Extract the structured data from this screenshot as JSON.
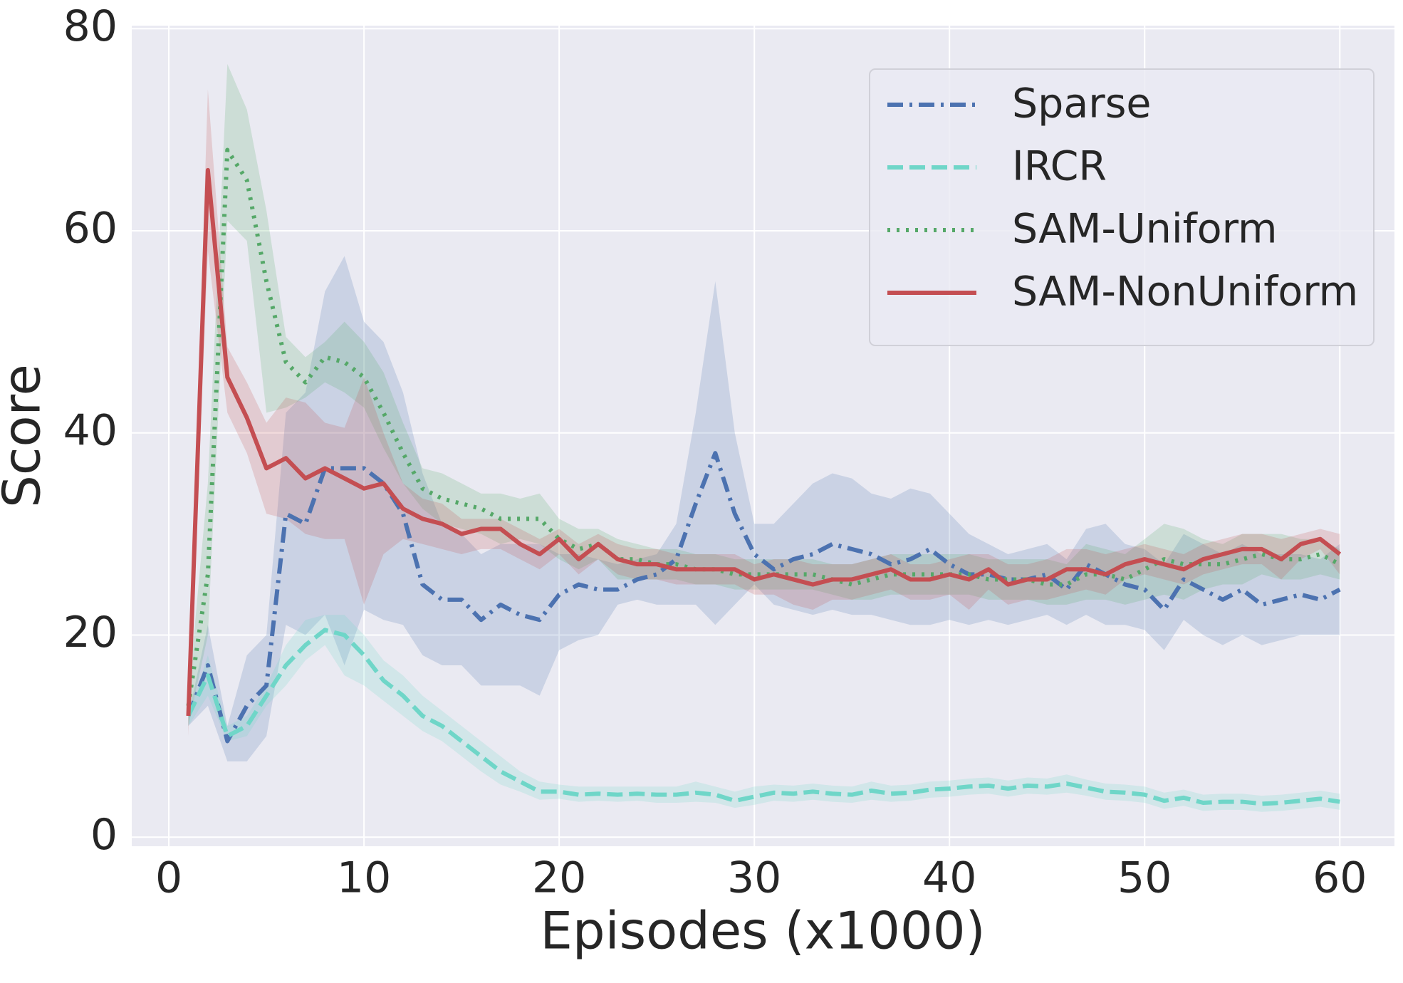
{
  "chart_data": {
    "type": "line",
    "xlabel": "Episodes (x1000)",
    "ylabel": "Score",
    "x": [
      1,
      2,
      3,
      4,
      5,
      6,
      7,
      8,
      9,
      10,
      11,
      12,
      13,
      14,
      15,
      16,
      17,
      18,
      19,
      20,
      21,
      22,
      23,
      24,
      25,
      26,
      27,
      28,
      29,
      30,
      31,
      32,
      33,
      34,
      35,
      36,
      37,
      38,
      39,
      40,
      41,
      42,
      43,
      44,
      45,
      46,
      47,
      48,
      49,
      50,
      51,
      52,
      53,
      54,
      55,
      56,
      57,
      58,
      59,
      60
    ],
    "xlim": [
      -1.9,
      62.8
    ],
    "xticks": [
      0,
      10,
      20,
      30,
      40,
      50,
      60
    ],
    "ylim": [
      -0.9,
      80.3
    ],
    "yticks": [
      0,
      20,
      40,
      60,
      80
    ],
    "grid": true,
    "legend": "upper right",
    "series": [
      {
        "name": "Sparse",
        "color": "#4c72b0",
        "dash": "dashdot",
        "values": [
          12,
          17,
          9.5,
          13,
          15,
          32,
          31,
          36.5,
          36.5,
          36.5,
          35,
          32,
          25,
          23.5,
          23.5,
          21.5,
          23,
          22,
          21.5,
          24,
          25,
          24.5,
          24.5,
          25.5,
          26,
          27.5,
          33,
          38,
          32,
          28,
          26.5,
          27.5,
          28,
          29,
          28.5,
          28,
          27,
          27.5,
          28.5,
          27,
          26,
          26,
          25.5,
          25.5,
          26,
          24.5,
          27,
          26,
          25,
          24.5,
          22.5,
          25.5,
          24.5,
          23.5,
          24.5,
          23,
          23.5,
          24,
          23.5,
          24.5
        ],
        "upper": [
          12,
          21,
          11,
          18,
          20,
          42,
          44,
          54,
          57.5,
          51,
          49,
          44,
          36,
          31,
          30,
          28,
          29,
          29,
          29,
          28,
          28,
          27.5,
          27,
          27.5,
          28,
          31,
          42,
          55,
          40,
          31,
          31,
          33,
          35,
          36,
          35.5,
          34,
          33.5,
          34.5,
          34,
          32,
          30,
          29,
          28,
          28.5,
          29,
          27.5,
          30.5,
          31,
          29,
          28.5,
          27,
          30,
          29,
          28,
          29,
          28,
          28,
          28,
          27.5,
          29
        ],
        "lower": [
          11,
          13,
          7.5,
          7.5,
          10,
          21,
          20,
          22,
          17,
          22.5,
          21.5,
          21,
          18,
          17,
          17,
          15,
          15,
          15,
          14,
          18.5,
          19.5,
          20,
          23,
          23.5,
          23,
          23,
          23,
          21,
          23,
          25,
          23,
          22.5,
          22,
          22.5,
          22,
          22,
          21.5,
          21,
          21,
          21.5,
          21,
          21.5,
          21,
          21.5,
          22,
          21,
          22,
          21,
          21,
          20.5,
          18.5,
          21.5,
          20,
          19,
          20,
          19,
          19.5,
          20,
          20,
          20
        ]
      },
      {
        "name": "IRCR",
        "color": "#6fd6c8",
        "dash": "dashed",
        "values": [
          12,
          16,
          10,
          11,
          14,
          17,
          19,
          20.5,
          20,
          18,
          15.5,
          14,
          12,
          11,
          9.5,
          8,
          6.5,
          5.5,
          4.5,
          4.5,
          4.2,
          4.3,
          4.2,
          4.3,
          4.2,
          4.2,
          4.4,
          4.2,
          3.6,
          4,
          4.4,
          4.3,
          4.5,
          4.3,
          4.2,
          4.6,
          4.3,
          4.4,
          4.7,
          4.8,
          5,
          5.1,
          4.8,
          5.1,
          5,
          5.3,
          4.9,
          4.5,
          4.4,
          4.2,
          3.6,
          3.9,
          3.4,
          3.5,
          3.5,
          3.3,
          3.4,
          3.6,
          3.8,
          3.5
        ],
        "upper": [
          12,
          18,
          11,
          12,
          15,
          19,
          21.5,
          22,
          22,
          20,
          17.5,
          16,
          14,
          12.5,
          11,
          9.5,
          8,
          6.5,
          5.5,
          5.2,
          5,
          5,
          5,
          5,
          5,
          5,
          5.5,
          5,
          4.5,
          5,
          5.2,
          5.1,
          5.3,
          5.1,
          5,
          5.5,
          5.1,
          5.2,
          5.5,
          5.6,
          5.8,
          5.9,
          5.6,
          5.9,
          5.8,
          6.2,
          5.7,
          5.3,
          5.2,
          5,
          4.4,
          4.7,
          4.2,
          4.3,
          4.3,
          4.1,
          4.2,
          4.4,
          4.6,
          4.3
        ],
        "lower": [
          11,
          14,
          9.5,
          10,
          13,
          15,
          17.5,
          19,
          16,
          15,
          13.5,
          12,
          10.5,
          9.5,
          8,
          6.5,
          5.2,
          4.5,
          3.7,
          3.8,
          3.5,
          3.6,
          3.5,
          3.6,
          3.4,
          3.4,
          3.5,
          3.4,
          2.9,
          3.2,
          3.6,
          3.5,
          3.7,
          3.5,
          3.4,
          3.7,
          3.5,
          3.6,
          3.9,
          4,
          4.2,
          4.3,
          4,
          4.3,
          4.2,
          4.4,
          4.1,
          3.7,
          3.6,
          3.4,
          2.8,
          3.1,
          2.6,
          2.7,
          2.7,
          2.5,
          2.6,
          2.8,
          3,
          2.7
        ]
      },
      {
        "name": "SAM-Uniform",
        "color": "#55a868",
        "dash": "dotted",
        "values": [
          13,
          26,
          68,
          65,
          55,
          47,
          45,
          47.5,
          47,
          45.5,
          42,
          38,
          34.5,
          33.5,
          33,
          32.5,
          31.5,
          31.5,
          31.5,
          29.5,
          28.5,
          29,
          27.5,
          27.5,
          27,
          27,
          26.5,
          26.5,
          26,
          26,
          26,
          26,
          26,
          25.5,
          25,
          25.5,
          26,
          26,
          26,
          26,
          26,
          25.5,
          25.5,
          25.5,
          25,
          25,
          26,
          26,
          25.5,
          26.5,
          27.5,
          27,
          27,
          27,
          27.5,
          28,
          27.5,
          27.5,
          28,
          27
        ],
        "upper": [
          14,
          35,
          76.5,
          72,
          62,
          49.5,
          47.5,
          49,
          51,
          49,
          46,
          41,
          36.5,
          36,
          35,
          34,
          34,
          33.5,
          34,
          31.5,
          30.5,
          30.5,
          29.5,
          29,
          28.5,
          28.5,
          28,
          28,
          27.5,
          27.5,
          27.5,
          27.5,
          27.5,
          27,
          27,
          27.5,
          28,
          28,
          28,
          28,
          28,
          27.5,
          27.5,
          27.5,
          27.5,
          27,
          29,
          28.5,
          28,
          29.5,
          31,
          30.5,
          29.5,
          29,
          30,
          30,
          30,
          29.5,
          29.5,
          28.5
        ],
        "lower": [
          11,
          20,
          61,
          59,
          42,
          42.5,
          43.5,
          45,
          44,
          42.5,
          38.5,
          35,
          32.5,
          31,
          30.5,
          30,
          29,
          29.5,
          29,
          27.5,
          26.5,
          27.5,
          25.5,
          25.5,
          25.5,
          25.5,
          25,
          25,
          24.5,
          24.5,
          24.5,
          24.5,
          24.5,
          24,
          23.5,
          23.5,
          24,
          24,
          24,
          24,
          24,
          23.5,
          23.5,
          23.5,
          23,
          23,
          23.5,
          23.5,
          23,
          23.5,
          24,
          23.5,
          24.5,
          25,
          25,
          26,
          25.5,
          25.5,
          26,
          25.5
        ]
      },
      {
        "name": "SAM-NonUniform",
        "color": "#c44e52",
        "dash": "solid",
        "values": [
          12,
          66,
          45.5,
          41.5,
          36.5,
          37.5,
          35.5,
          36.5,
          35.5,
          34.5,
          35,
          32.5,
          31.5,
          31,
          30,
          30.5,
          30.5,
          29,
          28,
          29.5,
          27.5,
          29,
          27.5,
          27,
          27,
          26.5,
          26.5,
          26.5,
          26.5,
          25.5,
          26,
          25.5,
          25,
          25.5,
          25.5,
          26,
          26.5,
          25.5,
          25.5,
          26,
          25.5,
          26.5,
          25,
          25.5,
          25.5,
          26.5,
          26.5,
          26,
          27,
          27.5,
          27,
          26.5,
          27.5,
          28,
          28.5,
          28.5,
          27.5,
          29,
          29.5,
          28
        ],
        "upper": [
          13,
          74,
          48.5,
          45,
          41,
          43.5,
          43,
          41,
          40.5,
          45.5,
          40,
          35,
          33.5,
          33,
          31.5,
          31.5,
          31.5,
          30.5,
          29.5,
          30.5,
          29,
          30,
          29,
          28.5,
          28.5,
          28,
          28,
          28,
          28,
          27,
          27.5,
          27.5,
          27,
          27,
          27,
          27.5,
          28,
          27,
          27,
          27.5,
          28,
          28,
          27,
          27,
          27.5,
          28.5,
          28.5,
          28,
          28.5,
          29,
          28.5,
          28,
          29,
          29.5,
          30,
          30,
          29.5,
          30,
          30.5,
          30
        ],
        "lower": [
          10,
          58,
          42,
          38,
          32,
          31.5,
          30,
          29.5,
          29.5,
          23,
          28,
          29.5,
          29,
          28.5,
          28,
          28.5,
          28.5,
          27.5,
          26.5,
          28,
          26,
          27.5,
          26,
          25.5,
          25.5,
          25,
          25,
          25,
          25,
          24,
          24,
          23,
          22.5,
          23.5,
          23.5,
          24,
          24.5,
          23.5,
          23.5,
          24,
          22.5,
          24.5,
          23,
          23.5,
          23.5,
          24,
          24.5,
          24,
          25.5,
          26,
          25.5,
          25,
          26,
          26.5,
          27,
          27,
          25.5,
          27.5,
          28.5,
          26
        ]
      }
    ]
  }
}
